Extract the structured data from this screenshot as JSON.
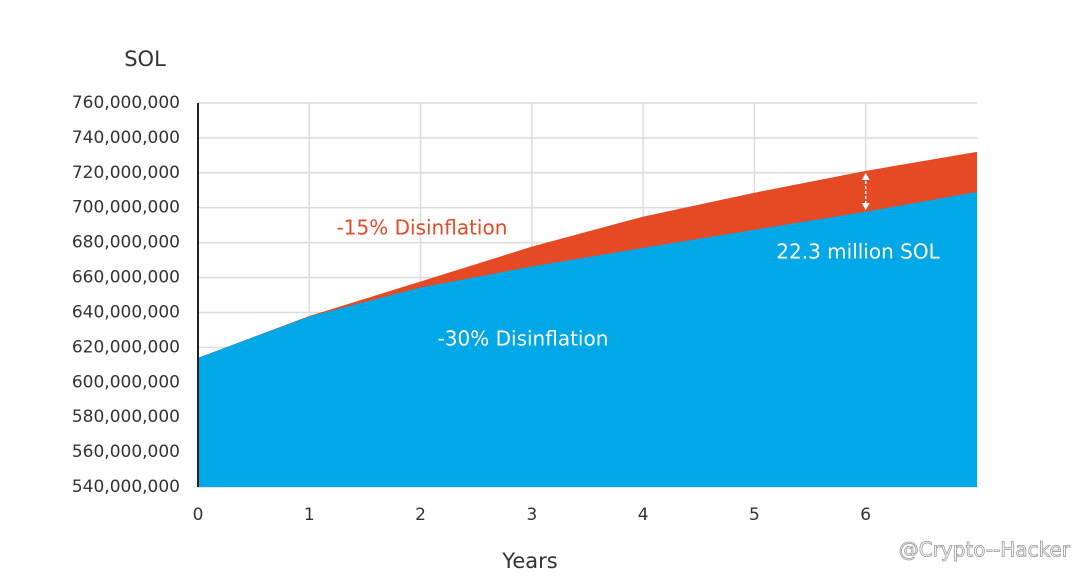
{
  "chart_data": {
    "type": "area",
    "y_label": "SOL",
    "x_label": "Years",
    "x": [
      0,
      1,
      2,
      3,
      4,
      5,
      6,
      7
    ],
    "series": [
      {
        "name": "-15% Disinflation",
        "color": "#e64a24",
        "values": [
          614000000,
          638000000,
          657700000,
          677700000,
          694900000,
          708600000,
          721100000,
          732000000
        ]
      },
      {
        "name": "-30% Disinflation",
        "color": "#00a8e8",
        "values": [
          614000000,
          637700000,
          654300000,
          666300000,
          677000000,
          687400000,
          697700000,
          709100000
        ]
      }
    ],
    "xlim": [
      0,
      7
    ],
    "xticks": [
      0,
      1,
      2,
      3,
      4,
      5,
      6
    ],
    "ylim": [
      540000000,
      760000000
    ],
    "yticks": [
      {
        "value": 540000000,
        "label": "540,000,000"
      },
      {
        "value": 560000000,
        "label": "560,000,000"
      },
      {
        "value": 580000000,
        "label": "580,000,000"
      },
      {
        "value": 600000000,
        "label": "600,000,000"
      },
      {
        "value": 620000000,
        "label": "620,000,000"
      },
      {
        "value": 640000000,
        "label": "640,000,000"
      },
      {
        "value": 660000000,
        "label": "660,000,000"
      },
      {
        "value": 680000000,
        "label": "680,000,000"
      },
      {
        "value": 700000000,
        "label": "700,000,000"
      },
      {
        "value": 720000000,
        "label": "720,000,000"
      },
      {
        "value": 740000000,
        "label": "740,000,000"
      },
      {
        "value": 760000000,
        "label": "760,000,000"
      }
    ],
    "grid": true,
    "annotations": [
      "22.3 million SOL"
    ],
    "watermark": "@Crypto--Hacker"
  }
}
